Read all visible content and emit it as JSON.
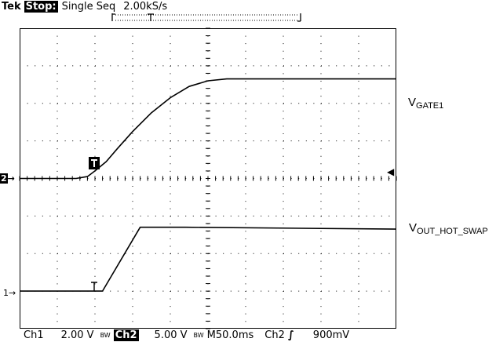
{
  "header": {
    "brand": "Tek",
    "state": "Stop:",
    "mode": "Single Seq",
    "sample_rate": "2.00kS/s"
  },
  "markers": {
    "ch2": "2",
    "ch1": "1",
    "trigger_symbol": "T",
    "arrow": "→",
    "trigger_level": "◀"
  },
  "labels": {
    "gate_main": "V",
    "gate_sub": "GATE1",
    "out_main": "V",
    "out_sub": "OUT_HOT_SWAP"
  },
  "footer": {
    "ch1": "Ch1",
    "ch1_scale": "2.00 V",
    "bw1": "BW",
    "ch2": "Ch2",
    "ch2_scale": "5.00 V",
    "bw2": "BW",
    "timebase": "M50.0ms",
    "trig_source": "Ch2",
    "trig_slope": "∫",
    "trig_level": "900mV"
  },
  "chart_data": {
    "type": "line",
    "x_divisions": 10,
    "y_divisions": 8,
    "series": [
      {
        "name": "VGATE1",
        "x": [
          0,
          1.5,
          1.8,
          2.0,
          2.3,
          2.6,
          3.0,
          3.5,
          4.0,
          4.5,
          5.0,
          5.5,
          6.0,
          10
        ],
        "y": [
          4.0,
          4.0,
          4.05,
          4.2,
          4.45,
          4.8,
          5.25,
          5.75,
          6.15,
          6.45,
          6.6,
          6.65,
          6.65,
          6.65
        ]
      },
      {
        "name": "VOUT_HOT_SWAP",
        "x": [
          0,
          1.0,
          2.2,
          3.2,
          4.4,
          10
        ],
        "y": [
          1.0,
          1.0,
          1.0,
          2.7,
          2.7,
          2.65
        ]
      }
    ]
  }
}
